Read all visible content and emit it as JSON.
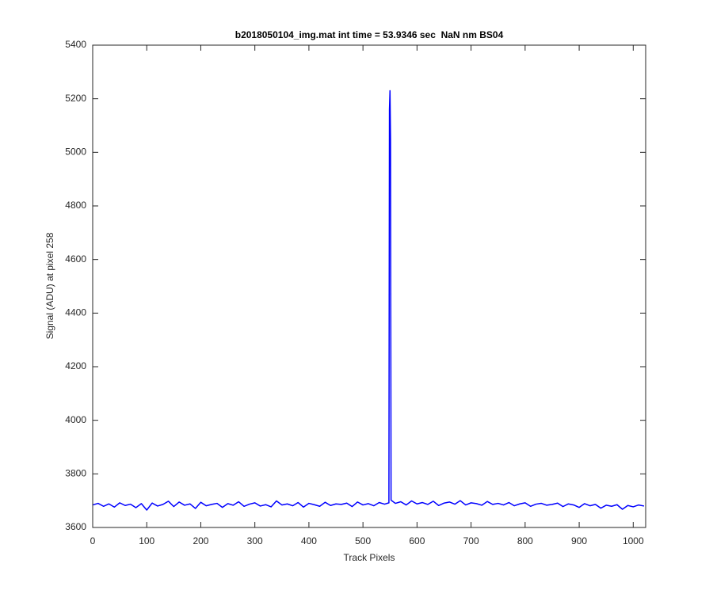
{
  "chart_data": {
    "type": "line",
    "title": "b2018050104_img.mat int time = 53.9346 sec  NaN nm BS04",
    "xlabel": "Track Pixels",
    "ylabel": "Signal (ADU) at pixel 258",
    "color": "#0000ff",
    "x": [
      0,
      10,
      20,
      30,
      40,
      50,
      60,
      70,
      80,
      90,
      100,
      110,
      120,
      130,
      140,
      150,
      160,
      170,
      180,
      190,
      200,
      210,
      220,
      230,
      240,
      250,
      260,
      270,
      280,
      290,
      300,
      310,
      320,
      330,
      340,
      350,
      360,
      370,
      380,
      390,
      400,
      410,
      420,
      430,
      440,
      450,
      460,
      470,
      480,
      490,
      500,
      510,
      520,
      530,
      540,
      548,
      549,
      550,
      551,
      552,
      560,
      570,
      580,
      590,
      600,
      610,
      620,
      630,
      640,
      650,
      660,
      670,
      680,
      690,
      700,
      710,
      720,
      730,
      740,
      750,
      760,
      770,
      780,
      790,
      800,
      810,
      820,
      830,
      840,
      850,
      860,
      870,
      880,
      890,
      900,
      910,
      920,
      930,
      940,
      950,
      960,
      970,
      980,
      990,
      1000,
      1010,
      1020
    ],
    "values": [
      3684,
      3690,
      3679,
      3688,
      3676,
      3692,
      3682,
      3687,
      3674,
      3689,
      3665,
      3691,
      3680,
      3686,
      3698,
      3678,
      3695,
      3683,
      3688,
      3671,
      3694,
      3681,
      3686,
      3690,
      3675,
      3689,
      3683,
      3696,
      3679,
      3687,
      3692,
      3680,
      3685,
      3677,
      3699,
      3684,
      3688,
      3681,
      3693,
      3676,
      3690,
      3685,
      3679,
      3694,
      3682,
      3688,
      3686,
      3691,
      3678,
      3695,
      3684,
      3689,
      3681,
      3693,
      3687,
      3692,
      5160,
      5230,
      5050,
      3702,
      3690,
      3696,
      3684,
      3699,
      3688,
      3693,
      3686,
      3698,
      3682,
      3691,
      3695,
      3687,
      3700,
      3684,
      3692,
      3689,
      3683,
      3697,
      3686,
      3690,
      3684,
      3693,
      3681,
      3688,
      3692,
      3679,
      3687,
      3690,
      3683,
      3686,
      3691,
      3678,
      3688,
      3684,
      3675,
      3689,
      3681,
      3686,
      3672,
      3683,
      3679,
      3685,
      3668,
      3682,
      3677,
      3684,
      3680
    ],
    "xlim": [
      0,
      1023
    ],
    "xticks": [
      0,
      100,
      200,
      300,
      400,
      500,
      600,
      700,
      800,
      900,
      1000
    ],
    "ylim": [
      3600,
      5400
    ],
    "yticks": [
      3600,
      3800,
      4000,
      4200,
      4400,
      4600,
      4800,
      5000,
      5200,
      5400
    ]
  }
}
